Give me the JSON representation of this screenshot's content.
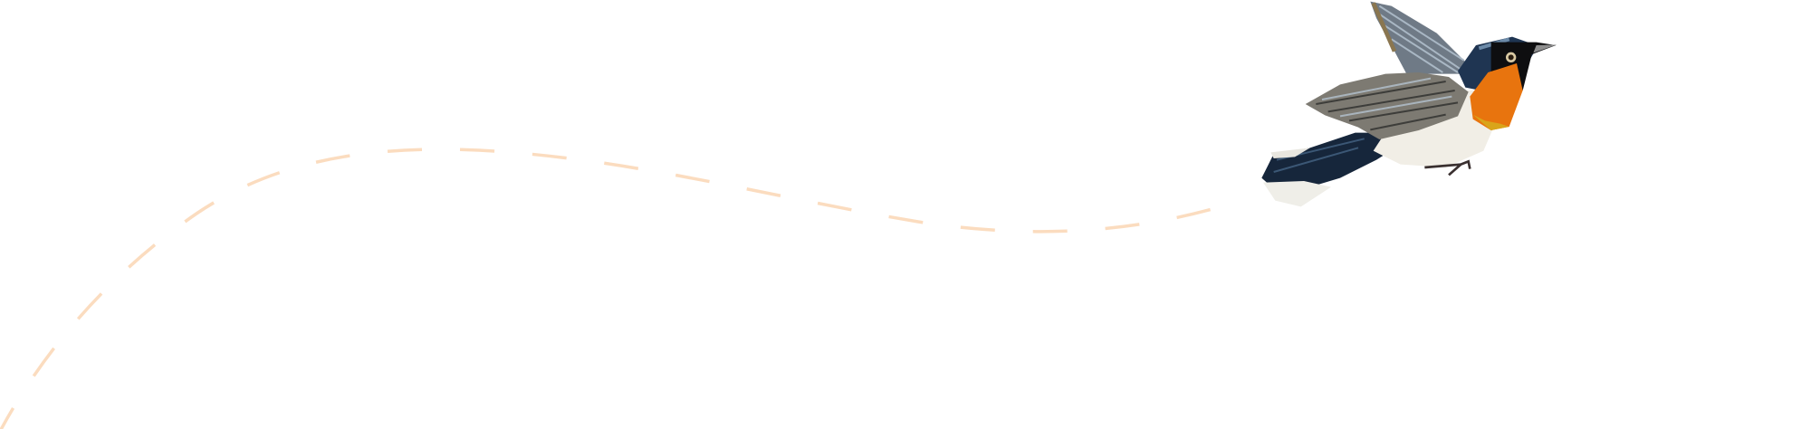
{
  "illustration": {
    "subject": "bird-in-flight",
    "colors": {
      "flight_path": "#fbdcbf",
      "throat": "#e8740e",
      "head": "#1f3552",
      "wing": "#7d7a72",
      "belly": "#f1eee6",
      "tail": "#16263b"
    }
  }
}
